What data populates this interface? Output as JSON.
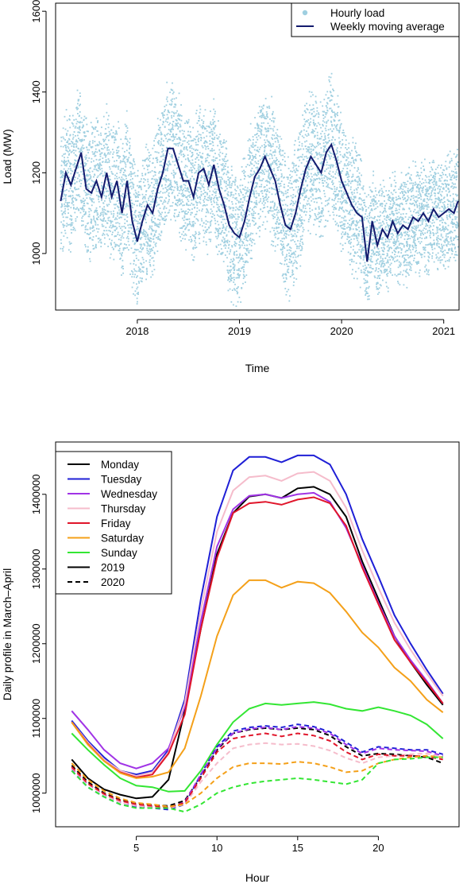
{
  "chart_data": [
    {
      "type": "scatter",
      "xlabel": "Time",
      "ylabel": "Load (MW)",
      "xlim": [
        2017.2,
        2021.15
      ],
      "ylim": [
        860,
        1620
      ],
      "x_ticks": [
        2018,
        2019,
        2020,
        2021
      ],
      "x_tick_labels": [
        "2018",
        "2019",
        "2020",
        "2021"
      ],
      "y_ticks": [
        1000,
        1200,
        1400,
        1600
      ],
      "y_tick_labels": [
        "1000",
        "1200",
        "1400",
        "1600"
      ],
      "legend_position": "top-right",
      "colors": {
        "scatter": "#9fcfe0",
        "line": "#131b6e"
      },
      "series": [
        {
          "name": "Hourly load",
          "kind": "points"
        },
        {
          "name": "Weekly moving average",
          "kind": "line",
          "x": [
            2017.25,
            2017.3,
            2017.35,
            2017.4,
            2017.45,
            2017.5,
            2017.55,
            2017.6,
            2017.65,
            2017.7,
            2017.75,
            2017.8,
            2017.85,
            2017.9,
            2017.95,
            2018.0,
            2018.05,
            2018.1,
            2018.15,
            2018.2,
            2018.25,
            2018.3,
            2018.35,
            2018.4,
            2018.45,
            2018.5,
            2018.55,
            2018.6,
            2018.65,
            2018.7,
            2018.75,
            2018.8,
            2018.85,
            2018.9,
            2018.95,
            2019.0,
            2019.05,
            2019.1,
            2019.15,
            2019.2,
            2019.25,
            2019.3,
            2019.35,
            2019.4,
            2019.45,
            2019.5,
            2019.55,
            2019.6,
            2019.65,
            2019.7,
            2019.75,
            2019.8,
            2019.85,
            2019.9,
            2019.95,
            2020.0,
            2020.05,
            2020.1,
            2020.15,
            2020.2,
            2020.25,
            2020.3,
            2020.35,
            2020.4,
            2020.45,
            2020.5,
            2020.55,
            2020.6,
            2020.65,
            2020.7,
            2020.75,
            2020.8,
            2020.85,
            2020.9,
            2020.95,
            2021.0,
            2021.05,
            2021.1,
            2021.14
          ],
          "y": [
            1130,
            1200,
            1170,
            1210,
            1250,
            1160,
            1150,
            1180,
            1140,
            1200,
            1140,
            1180,
            1100,
            1180,
            1080,
            1030,
            1080,
            1120,
            1100,
            1160,
            1200,
            1260,
            1260,
            1220,
            1180,
            1180,
            1140,
            1200,
            1210,
            1170,
            1220,
            1160,
            1120,
            1070,
            1050,
            1040,
            1080,
            1140,
            1190,
            1210,
            1240,
            1210,
            1180,
            1120,
            1070,
            1060,
            1100,
            1160,
            1210,
            1240,
            1220,
            1200,
            1250,
            1270,
            1230,
            1180,
            1150,
            1120,
            1100,
            1090,
            980,
            1080,
            1020,
            1060,
            1040,
            1080,
            1050,
            1070,
            1060,
            1090,
            1080,
            1100,
            1080,
            1110,
            1090,
            1100,
            1110,
            1100,
            1130
          ]
        }
      ]
    },
    {
      "type": "line",
      "xlabel": "Hour",
      "ylabel": "Daily profile in March–April",
      "xlim": [
        0,
        25
      ],
      "ylim": [
        955000,
        1470000
      ],
      "x_ticks": [
        5,
        10,
        15,
        20
      ],
      "x_tick_labels": [
        "5",
        "10",
        "15",
        "20"
      ],
      "y_ticks": [
        1000000,
        1100000,
        1200000,
        1300000,
        1400000
      ],
      "y_tick_labels": [
        "1000000",
        "1100000",
        "1200000",
        "1300000",
        "1400000"
      ],
      "legend_position": "top-left",
      "legend": [
        {
          "label": "Monday",
          "color": "#000000",
          "dash": "solid"
        },
        {
          "label": "Tuesday",
          "color": "#1f1fd6",
          "dash": "solid"
        },
        {
          "label": "Wednesday",
          "color": "#a033e6",
          "dash": "solid"
        },
        {
          "label": "Thursday",
          "color": "#f5bccb",
          "dash": "solid"
        },
        {
          "label": "Friday",
          "color": "#e0152a",
          "dash": "solid"
        },
        {
          "label": "Saturday",
          "color": "#f4a019",
          "dash": "solid"
        },
        {
          "label": "Sunday",
          "color": "#33e633",
          "dash": "solid"
        },
        {
          "label": "2019",
          "color": "#000000",
          "dash": "solid"
        },
        {
          "label": "2020",
          "color": "#000000",
          "dash": "dashed"
        }
      ],
      "x": [
        1,
        2,
        3,
        4,
        5,
        6,
        7,
        8,
        9,
        10,
        11,
        12,
        13,
        14,
        15,
        16,
        17,
        18,
        19,
        20,
        21,
        22,
        23,
        24
      ],
      "series": [
        {
          "name": "Monday",
          "year": "2019",
          "values": [
            1045000,
            1020000,
            1005000,
            998000,
            993000,
            995000,
            1018000,
            1110000,
            1220000,
            1320000,
            1375000,
            1397000,
            1400000,
            1395000,
            1408000,
            1410000,
            1400000,
            1370000,
            1310000,
            1260000,
            1210000,
            1175000,
            1145000,
            1118000
          ]
        },
        {
          "name": "Tuesday",
          "year": "2019",
          "values": [
            1097000,
            1070000,
            1048000,
            1030000,
            1025000,
            1030000,
            1058000,
            1125000,
            1260000,
            1370000,
            1432000,
            1450000,
            1450000,
            1443000,
            1452000,
            1452000,
            1440000,
            1400000,
            1340000,
            1290000,
            1238000,
            1200000,
            1165000,
            1133000
          ]
        },
        {
          "name": "Wednesday",
          "year": "2019",
          "values": [
            1110000,
            1085000,
            1058000,
            1040000,
            1033000,
            1040000,
            1060000,
            1115000,
            1230000,
            1330000,
            1380000,
            1398000,
            1400000,
            1395000,
            1400000,
            1402000,
            1390000,
            1355000,
            1305000,
            1255000,
            1210000,
            1178000,
            1150000,
            1120000
          ]
        },
        {
          "name": "Thursday",
          "year": "2019",
          "values": [
            1095000,
            1068000,
            1045000,
            1030000,
            1023000,
            1028000,
            1055000,
            1120000,
            1245000,
            1350000,
            1405000,
            1423000,
            1425000,
            1418000,
            1428000,
            1430000,
            1418000,
            1382000,
            1325000,
            1275000,
            1228000,
            1192000,
            1160000,
            1130000
          ]
        },
        {
          "name": "Friday",
          "year": "2019",
          "values": [
            1095000,
            1066000,
            1043000,
            1028000,
            1021000,
            1025000,
            1053000,
            1105000,
            1220000,
            1315000,
            1375000,
            1388000,
            1390000,
            1386000,
            1393000,
            1396000,
            1388000,
            1358000,
            1302000,
            1253000,
            1205000,
            1175000,
            1148000,
            1120000
          ]
        },
        {
          "name": "Saturday",
          "year": "2019",
          "values": [
            1095000,
            1065000,
            1043000,
            1027000,
            1020000,
            1022000,
            1028000,
            1060000,
            1130000,
            1210000,
            1265000,
            1285000,
            1285000,
            1275000,
            1283000,
            1281000,
            1268000,
            1243000,
            1215000,
            1195000,
            1168000,
            1150000,
            1125000,
            1108000
          ]
        },
        {
          "name": "Sunday",
          "year": "2019",
          "values": [
            1080000,
            1058000,
            1038000,
            1020000,
            1010000,
            1008000,
            1002000,
            1003000,
            1030000,
            1065000,
            1095000,
            1113000,
            1120000,
            1118000,
            1120000,
            1122000,
            1119000,
            1113000,
            1110000,
            1115000,
            1110000,
            1104000,
            1092000,
            1073000
          ]
        },
        {
          "name": "Monday",
          "year": "2020",
          "values": [
            1037000,
            1015000,
            1000000,
            991000,
            986000,
            984000,
            983000,
            990000,
            1022000,
            1058000,
            1080000,
            1085000,
            1087000,
            1085000,
            1087000,
            1085000,
            1077000,
            1062000,
            1050000,
            1053000,
            1052000,
            1050000,
            1048000,
            1040000
          ]
        },
        {
          "name": "Tuesday",
          "year": "2020",
          "values": [
            1030000,
            1008000,
            995000,
            985000,
            981000,
            980000,
            978000,
            985000,
            1025000,
            1062000,
            1083000,
            1088000,
            1090000,
            1088000,
            1092000,
            1089000,
            1082000,
            1068000,
            1055000,
            1062000,
            1060000,
            1058000,
            1058000,
            1052000
          ]
        },
        {
          "name": "Wednesday",
          "year": "2020",
          "values": [
            1033000,
            1012000,
            998000,
            988000,
            983000,
            982000,
            980000,
            988000,
            1025000,
            1060000,
            1080000,
            1086000,
            1088000,
            1085000,
            1089000,
            1087000,
            1080000,
            1065000,
            1053000,
            1060000,
            1058000,
            1057000,
            1056000,
            1050000
          ]
        },
        {
          "name": "Thursday",
          "year": "2020",
          "values": [
            1034000,
            1012000,
            998000,
            988000,
            983000,
            981000,
            980000,
            985000,
            1015000,
            1040000,
            1060000,
            1065000,
            1067000,
            1065000,
            1066000,
            1063000,
            1057000,
            1047000,
            1040000,
            1048000,
            1050000,
            1052000,
            1053000,
            1048000
          ]
        },
        {
          "name": "Friday",
          "year": "2020",
          "values": [
            1035000,
            1013000,
            999000,
            990000,
            985000,
            983000,
            981000,
            987000,
            1020000,
            1055000,
            1073000,
            1077000,
            1080000,
            1076000,
            1080000,
            1077000,
            1070000,
            1055000,
            1045000,
            1052000,
            1050000,
            1050000,
            1049000,
            1045000
          ]
        },
        {
          "name": "Saturday",
          "year": "2020",
          "values": [
            1040000,
            1018000,
            1003000,
            993000,
            987000,
            985000,
            982000,
            985000,
            1000000,
            1020000,
            1035000,
            1040000,
            1040000,
            1039000,
            1042000,
            1040000,
            1035000,
            1028000,
            1030000,
            1040000,
            1045000,
            1048000,
            1050000,
            1048000
          ]
        },
        {
          "name": "Sunday",
          "year": "2020",
          "values": [
            1030000,
            1008000,
            995000,
            985000,
            980000,
            980000,
            980000,
            975000,
            985000,
            1000000,
            1008000,
            1013000,
            1016000,
            1018000,
            1020000,
            1018000,
            1015000,
            1012000,
            1018000,
            1040000,
            1045000,
            1046000,
            1048000,
            1048000
          ]
        }
      ]
    }
  ]
}
